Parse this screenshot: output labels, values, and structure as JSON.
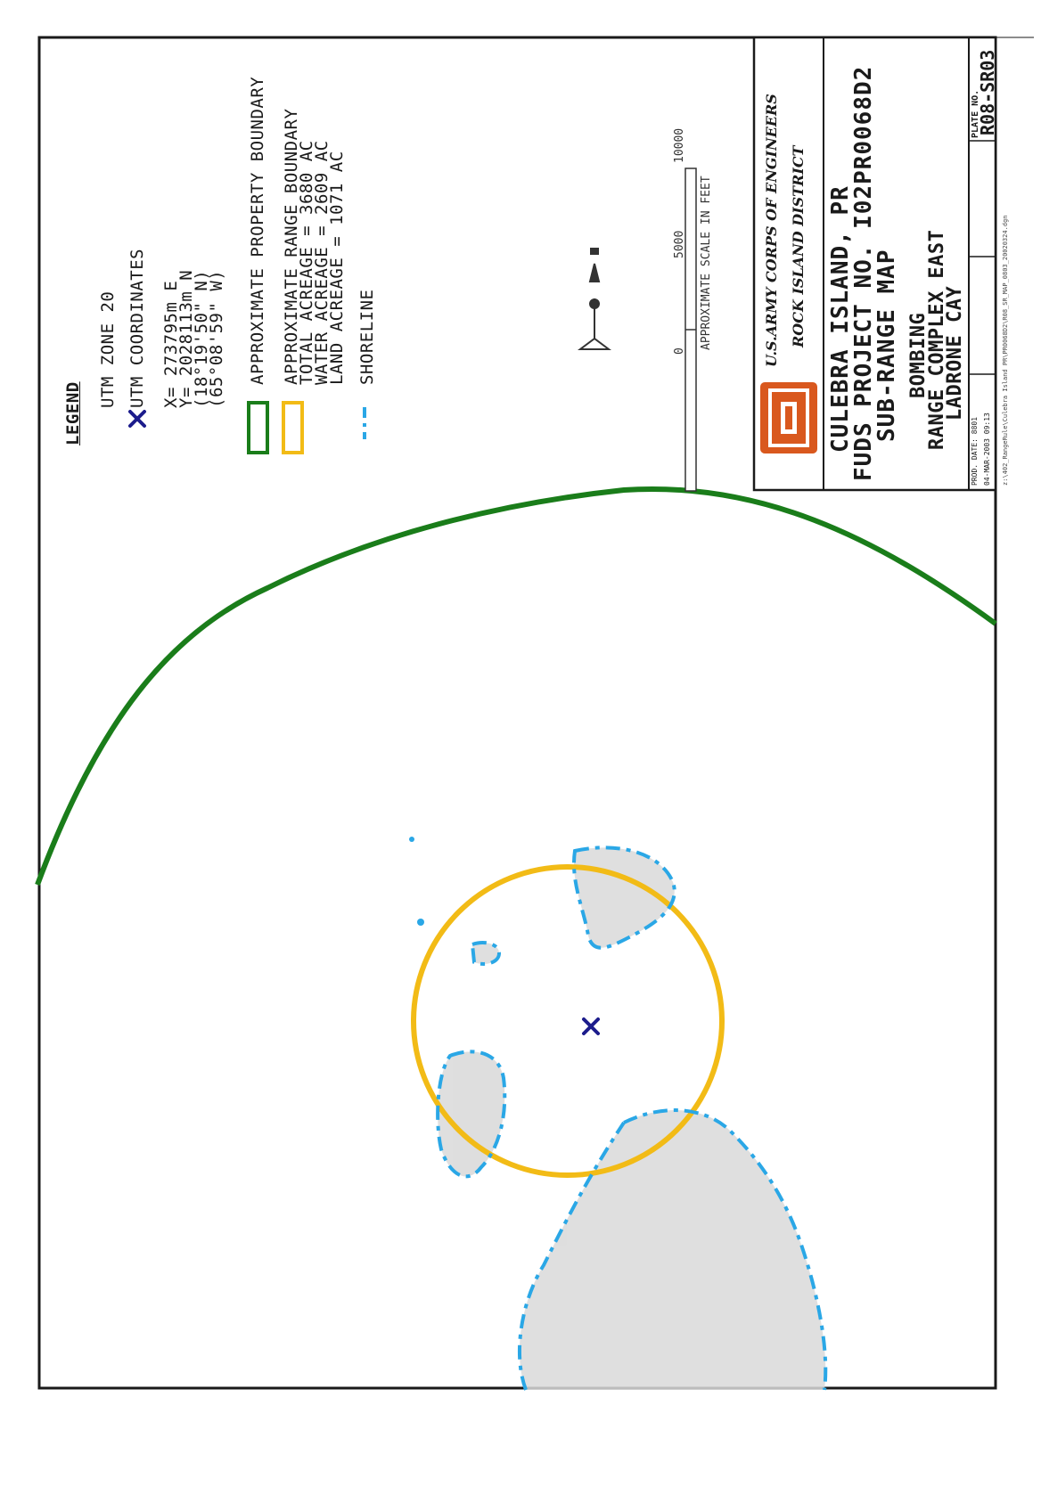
{
  "legend": {
    "title": "LEGEND",
    "utm_zone": "UTM ZONE 20",
    "utm_coordinates_label": "UTM COORDINATES",
    "coords": [
      "X= 273795m E",
      "Y= 2028113m N",
      "(18°19'50\" N)",
      "(65°08'59\" W)"
    ],
    "property_boundary_label": "APPROXIMATE PROPERTY BOUNDARY",
    "range_boundary_lines": [
      "APPROXIMATE RANGE BOUNDARY",
      "TOTAL ACREAGE = 3680 AC",
      "WATER ACREAGE = 2609 AC",
      "LAND ACREAGE = 1071 AC"
    ],
    "shoreline_label": "SHORELINE",
    "colors": {
      "property_boundary": "#1a7d1a",
      "range_boundary": "#f2bb16",
      "shoreline": "#2aa7e6",
      "utm_marker": "#1c1c8c"
    }
  },
  "scale_bar": {
    "ticks": [
      "0",
      "5000",
      "10000"
    ],
    "label": "APPROXIMATE SCALE IN FEET"
  },
  "title_block": {
    "organization": "U.S.ARMY CORPS OF ENGINEERS",
    "district": "ROCK ISLAND DISTRICT",
    "title_lines": [
      "CULEBRA ISLAND, PR",
      "FUDS PROJECT NO. I02PR0068D2",
      "SUB-RANGE MAP"
    ],
    "subtitle_lines": [
      "BOMBING",
      "RANGE COMPLEX EAST",
      "LADRONE CAY"
    ],
    "prod_date_label": "PROD. DATE: 8801",
    "prod_date": "04-MAR-2003 09:13",
    "plate_label": "PLATE NO.",
    "plate_no": "R08-SR03",
    "file_path": "z:\\402_RangeRule\\Culebra Island PR\\PR0068D2\\R08_SR_MAP_0803_20020324.dgn"
  }
}
